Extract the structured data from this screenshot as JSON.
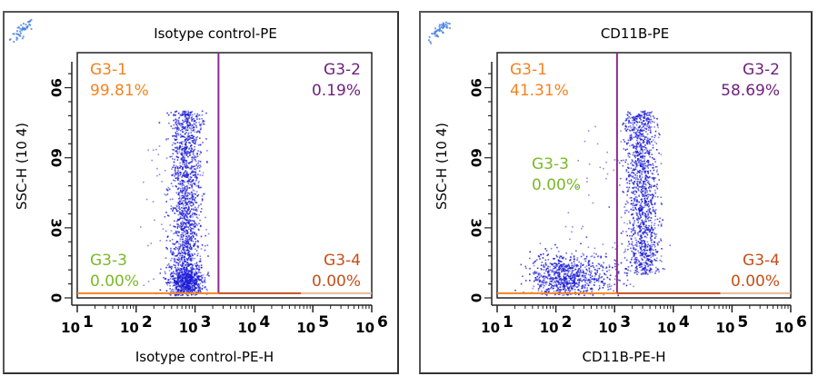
{
  "colors": {
    "gate1": "#f58220",
    "gate2": "#6d1f7e",
    "gate3": "#7ab929",
    "gate4": "#c4501a",
    "quadrant_v_line": "#8b2a8e",
    "quadrant_h_line_left": "#f58220",
    "quadrant_h_line_right": "#c4501a",
    "dots": "#1a1ad6",
    "logo": "#3a7ae0"
  },
  "chart_data": [
    {
      "type": "scatter",
      "title": "Isotype control-PE",
      "xlabel": "Isotype control-PE-H",
      "ylabel": "SSC-H (10 4)",
      "x_scale": "log",
      "xlim": [
        10,
        1000000
      ],
      "ylim": [
        0,
        105
      ],
      "x_ticks": [
        {
          "base": "10",
          "exp": "1"
        },
        {
          "base": "10",
          "exp": "2"
        },
        {
          "base": "10",
          "exp": "3"
        },
        {
          "base": "10",
          "exp": "4"
        },
        {
          "base": "10",
          "exp": "5"
        },
        {
          "base": "10",
          "exp": "6"
        }
      ],
      "y_ticks": [
        "0",
        "30",
        "60",
        "90"
      ],
      "y_tick_values": [
        0,
        30,
        60,
        90
      ],
      "quadrant_gate": {
        "x": 2500,
        "y": 2
      },
      "gates": [
        {
          "name": "G3-1",
          "percent": "99.81%",
          "position": "top-left"
        },
        {
          "name": "G3-2",
          "percent": "0.19%",
          "position": "top-right"
        },
        {
          "name": "G3-3",
          "percent": "0.00%",
          "position": "bottom-left"
        },
        {
          "name": "G3-4",
          "percent": "0.00%",
          "position": "bottom-right"
        }
      ],
      "populations": [
        {
          "x_center_log10": 2.85,
          "x_spread_log10": 0.13,
          "y_min": 3,
          "y_max": 80,
          "shape": "column",
          "count": 1500
        },
        {
          "x_center_log10": 2.85,
          "x_spread_log10": 0.15,
          "y_center": 6,
          "y_spread": 4,
          "shape": "blob",
          "count": 500
        },
        {
          "x_center_log10": 2.6,
          "x_spread_log10": 0.35,
          "y_min": 3,
          "y_max": 70,
          "shape": "sparse",
          "count": 60
        }
      ]
    },
    {
      "type": "scatter",
      "title": "CD11B-PE",
      "xlabel": "CD11B-PE-H",
      "ylabel": "SSC-H (10 4)",
      "x_scale": "log",
      "xlim": [
        10,
        1000000
      ],
      "ylim": [
        0,
        105
      ],
      "x_ticks": [
        {
          "base": "10",
          "exp": "1"
        },
        {
          "base": "10",
          "exp": "2"
        },
        {
          "base": "10",
          "exp": "3"
        },
        {
          "base": "10",
          "exp": "4"
        },
        {
          "base": "10",
          "exp": "5"
        },
        {
          "base": "10",
          "exp": "6"
        }
      ],
      "y_ticks": [
        "0",
        "30",
        "60",
        "90"
      ],
      "y_tick_values": [
        0,
        30,
        60,
        90
      ],
      "quadrant_gate": {
        "x": 1100,
        "y": 2
      },
      "gates": [
        {
          "name": "G3-1",
          "percent": "41.31%",
          "position": "top-left"
        },
        {
          "name": "G3-2",
          "percent": "58.69%",
          "position": "top-right"
        },
        {
          "name": "G3-3",
          "percent": "0.00%",
          "position": "mid-left"
        },
        {
          "name": "G3-4",
          "percent": "0.00%",
          "position": "bottom-right"
        }
      ],
      "populations": [
        {
          "x_center_log10": 3.45,
          "x_spread_log10": 0.14,
          "y_min": 10,
          "y_max": 80,
          "shape": "column",
          "count": 1300
        },
        {
          "x_center_log10": 2.15,
          "x_spread_log10": 0.28,
          "y_center": 8,
          "y_spread": 5,
          "shape": "blob",
          "count": 700
        },
        {
          "x_center_log10": 2.75,
          "x_spread_log10": 0.25,
          "y_center": 8,
          "y_spread": 5,
          "shape": "blob",
          "count": 120
        },
        {
          "x_center_log10": 2.8,
          "x_spread_log10": 0.5,
          "y_min": 5,
          "y_max": 75,
          "shape": "sparse",
          "count": 60
        }
      ]
    }
  ]
}
